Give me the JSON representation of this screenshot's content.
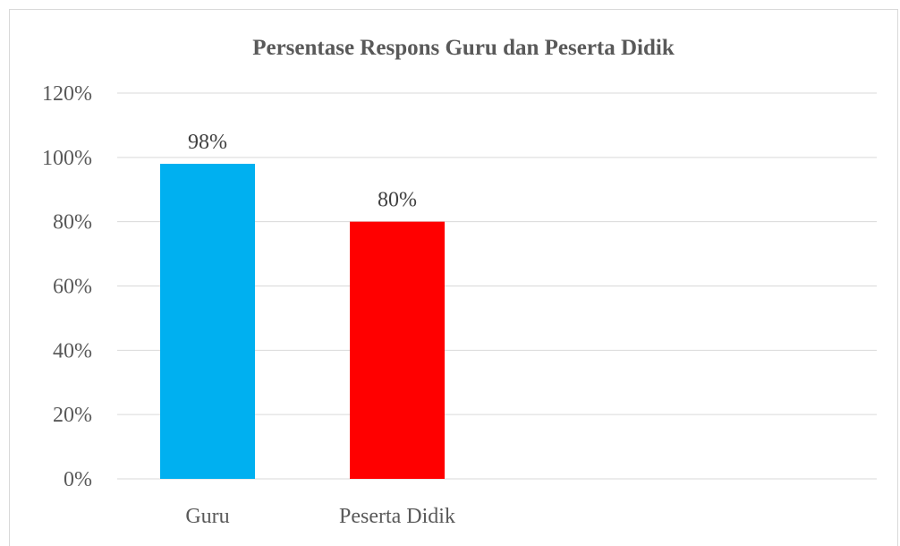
{
  "chart_data": {
    "type": "bar",
    "title": "Persentase Respons Guru dan Peserta Didik",
    "categories": [
      "Guru",
      "Peserta Didik"
    ],
    "values": [
      98,
      80
    ],
    "data_labels": [
      "98%",
      "80%"
    ],
    "bar_colors": [
      "#00b0f0",
      "#ff0000"
    ],
    "ylim": [
      0,
      120
    ],
    "ytick_values": [
      0,
      20,
      40,
      60,
      80,
      100,
      120
    ],
    "yticks": [
      "0%",
      "20%",
      "40%",
      "60%",
      "80%",
      "100%",
      "120%"
    ],
    "grid": true,
    "legend": "none"
  }
}
